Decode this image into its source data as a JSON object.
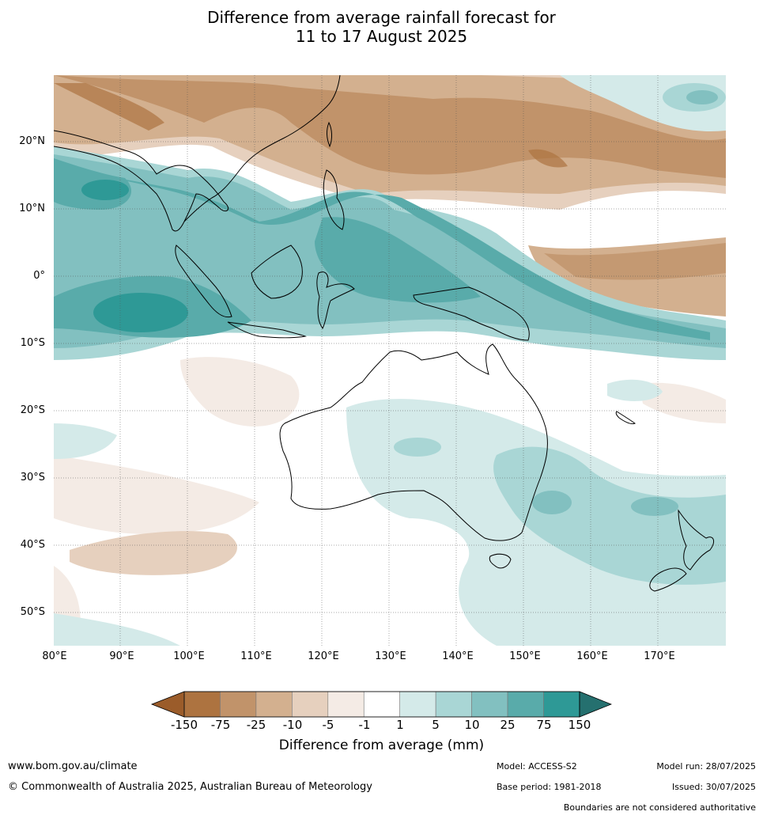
{
  "title": {
    "line1": "Difference from average rainfall forecast for",
    "line2": "11 to 17 August 2025"
  },
  "map": {
    "lat_labels": [
      "20°N",
      "10°N",
      "0°",
      "10°S",
      "20°S",
      "30°S",
      "40°S",
      "50°S"
    ],
    "lon_labels": [
      "80°E",
      "90°E",
      "100°E",
      "110°E",
      "120°E",
      "130°E",
      "140°E",
      "150°E",
      "160°E",
      "170°E"
    ]
  },
  "colorbar": {
    "ticks": [
      "-150",
      "-75",
      "-25",
      "-10",
      "-5",
      "-1",
      "1",
      "5",
      "10",
      "25",
      "75",
      "150"
    ],
    "colors": [
      "#9b5c2a",
      "#ad7340",
      "#c1936a",
      "#d3b08f",
      "#e6d0be",
      "#f4ebe5",
      "#ffffff",
      "#d4eae9",
      "#a9d6d5",
      "#82c0c0",
      "#59abaa",
      "#2e9996",
      "#25706f"
    ],
    "label": "Difference from average (mm)"
  },
  "footer": {
    "website": "www.bom.gov.au/climate",
    "copyright": "© Commonwealth of Australia 2025, Australian Bureau of Meteorology",
    "model": "Model: ACCESS-S2",
    "base_period": "Base period: 1981-2018",
    "model_run": "Model run: 28/07/2025",
    "issued": "Issued: 30/07/2025",
    "boundaries": "Boundaries are not considered authoritative"
  }
}
